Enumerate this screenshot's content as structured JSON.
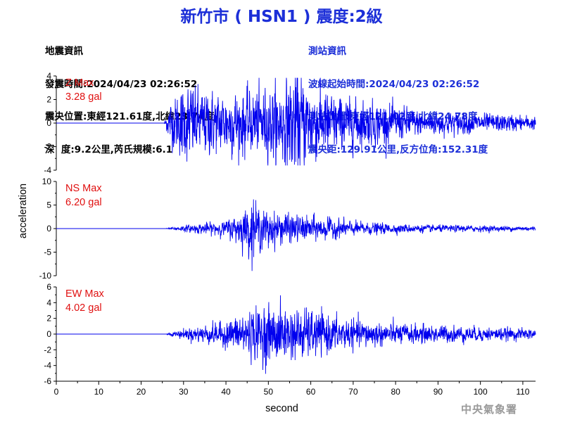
{
  "header": {
    "title": "新竹市 ( HSN1 ) 震度:2級",
    "left_info": [
      "地震資訊",
      "發震時間:2024/04/23 02:26:52",
      "震央位置:東經121.61度,北緯23.74度",
      "深  度:9.2公里,芮氏規模:6.1"
    ],
    "right_info": [
      "測站資訊",
      "波線起始時間:2024/04/23 02:26:52",
      "測站位置:東經121.02度,北緯24.78度",
      "震央距:129.91公里,反方位角:152.31度"
    ]
  },
  "footer": {
    "agency": "中央氣象署"
  },
  "colors": {
    "trace": "#0000ee",
    "max_label": "#e01010",
    "title": "#1c2fd8"
  },
  "chart_data": {
    "type": "line",
    "xlabel": "second",
    "ylabel": "acceleration",
    "xlim": [
      0,
      113
    ],
    "x_ticks": [
      0,
      10,
      20,
      30,
      40,
      50,
      60,
      70,
      80,
      90,
      100,
      110
    ],
    "grid": false,
    "panels": [
      {
        "name": "Z",
        "max_label": "Z Max",
        "max_value": "3.28 gal",
        "ylim": [
          -4,
          4
        ],
        "y_ticks": [
          -4,
          -2,
          0,
          2,
          4
        ],
        "onset": 25.5,
        "envelope": [
          [
            25.5,
            0.1
          ],
          [
            27,
            1.2
          ],
          [
            29,
            1.6
          ],
          [
            31,
            2.1
          ],
          [
            34,
            1.7
          ],
          [
            38,
            1.6
          ],
          [
            42,
            1.7
          ],
          [
            46,
            1.6
          ],
          [
            50,
            1.9
          ],
          [
            54,
            2.0
          ],
          [
            56,
            2.9
          ],
          [
            60,
            2.0
          ],
          [
            64,
            1.6
          ],
          [
            68,
            1.3
          ],
          [
            75,
            1.1
          ],
          [
            85,
            0.7
          ],
          [
            95,
            0.55
          ],
          [
            105,
            0.45
          ],
          [
            113,
            0.35
          ]
        ],
        "peaks": [
          [
            32,
            2.3
          ],
          [
            55.5,
            -3.28
          ],
          [
            64,
            -2.4
          ],
          [
            29.5,
            -1.9
          ],
          [
            47,
            1.9
          ],
          [
            52,
            -2.1
          ]
        ]
      },
      {
        "name": "NS",
        "max_label": "NS Max",
        "max_value": "6.20 gal",
        "ylim": [
          -10,
          10
        ],
        "y_ticks": [
          -10,
          -5,
          0,
          5,
          10
        ],
        "onset": 26,
        "envelope": [
          [
            26,
            0.05
          ],
          [
            30,
            0.4
          ],
          [
            35,
            0.7
          ],
          [
            40,
            1.0
          ],
          [
            43,
            2.0
          ],
          [
            46,
            3.5
          ],
          [
            48,
            2.6
          ],
          [
            51,
            2.2
          ],
          [
            55,
            1.8
          ],
          [
            60,
            1.6
          ],
          [
            65,
            1.3
          ],
          [
            70,
            0.9
          ],
          [
            80,
            0.6
          ],
          [
            90,
            0.45
          ],
          [
            100,
            0.4
          ],
          [
            113,
            0.3
          ]
        ],
        "peaks": [
          [
            46.5,
            6.2
          ],
          [
            46,
            -4.6
          ],
          [
            50,
            -4.2
          ],
          [
            54,
            3.0
          ],
          [
            64,
            2.6
          ]
        ]
      },
      {
        "name": "EW",
        "max_label": "EW Max",
        "max_value": "4.02 gal",
        "ylim": [
          -6,
          6
        ],
        "y_ticks": [
          -6,
          -4,
          -2,
          0,
          2,
          4,
          6
        ],
        "onset": 26,
        "envelope": [
          [
            26,
            0.05
          ],
          [
            30,
            0.4
          ],
          [
            35,
            0.7
          ],
          [
            40,
            1.0
          ],
          [
            44,
            1.7
          ],
          [
            48,
            2.0
          ],
          [
            52,
            2.2
          ],
          [
            56,
            1.9
          ],
          [
            60,
            1.8
          ],
          [
            64,
            1.5
          ],
          [
            70,
            1.1
          ],
          [
            80,
            0.8
          ],
          [
            90,
            0.7
          ],
          [
            100,
            0.55
          ],
          [
            113,
            0.4
          ]
        ],
        "peaks": [
          [
            49,
            3.3
          ],
          [
            49.5,
            -4.02
          ],
          [
            58,
            -2.9
          ],
          [
            54,
            2.9
          ],
          [
            46,
            2.5
          ]
        ]
      }
    ]
  }
}
